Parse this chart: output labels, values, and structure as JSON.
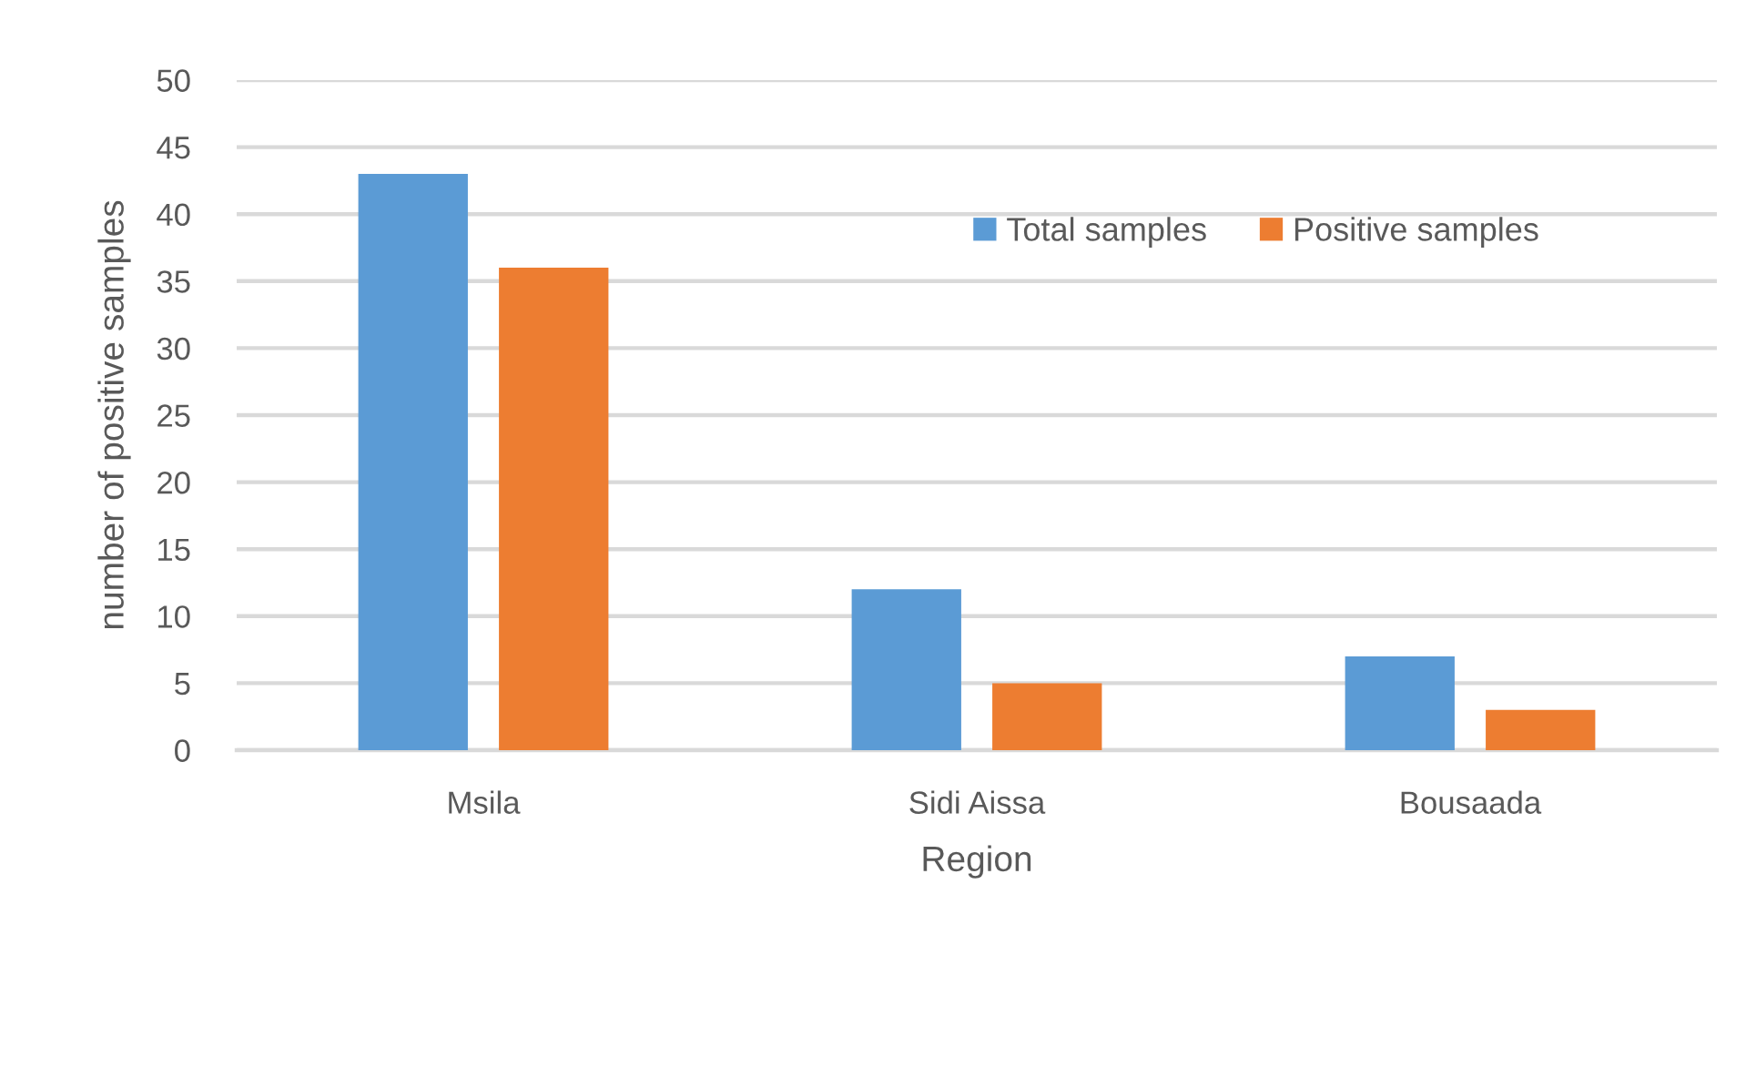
{
  "chart_data": {
    "type": "bar",
    "xlabel": "Region",
    "ylabel": "number of positive samples",
    "categories": [
      "Msila",
      "Sidi Aissa",
      "Bousaada"
    ],
    "series": [
      {
        "name": "Total samples",
        "color": "#5b9bd5",
        "values": [
          43,
          12,
          7
        ]
      },
      {
        "name": "Positive samples",
        "color": "#ed7d31",
        "values": [
          36,
          5,
          3
        ]
      }
    ],
    "ylim": [
      0,
      50
    ],
    "yticks": [
      0,
      5,
      10,
      15,
      20,
      25,
      30,
      35,
      40,
      45,
      50
    ],
    "grid": "y",
    "legend": "top right"
  }
}
